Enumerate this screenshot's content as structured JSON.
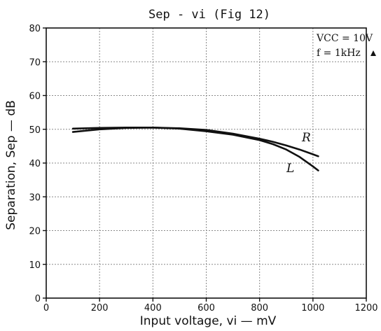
{
  "chart_data": {
    "type": "line",
    "title": "Sep - vi (Fig 12)",
    "xlabel": "Input voltage, vi — mV",
    "ylabel": "Separation, Sep — dB",
    "xlim": [
      0,
      1200
    ],
    "ylim": [
      0,
      80
    ],
    "xticks": [
      0,
      200,
      400,
      600,
      800,
      1000,
      1200
    ],
    "yticks": [
      0,
      10,
      20,
      30,
      40,
      50,
      60,
      70,
      80
    ],
    "grid": true,
    "conditions": [
      "VCC = 10V",
      "f = 1kHz"
    ],
    "series": [
      {
        "name": "R",
        "x": [
          100,
          200,
          300,
          400,
          500,
          600,
          700,
          800,
          850,
          900,
          950,
          1000,
          1020
        ],
        "y": [
          50.2,
          50.4,
          50.5,
          50.5,
          50.3,
          49.8,
          48.7,
          47.2,
          46.3,
          45.2,
          44.0,
          42.6,
          42.0
        ]
      },
      {
        "name": "L",
        "x": [
          100,
          200,
          300,
          400,
          500,
          600,
          700,
          800,
          850,
          900,
          950,
          1000,
          1020
        ],
        "y": [
          49.2,
          50.0,
          50.4,
          50.5,
          50.2,
          49.4,
          48.4,
          46.8,
          45.6,
          44.0,
          41.8,
          39.0,
          37.8
        ]
      }
    ]
  }
}
